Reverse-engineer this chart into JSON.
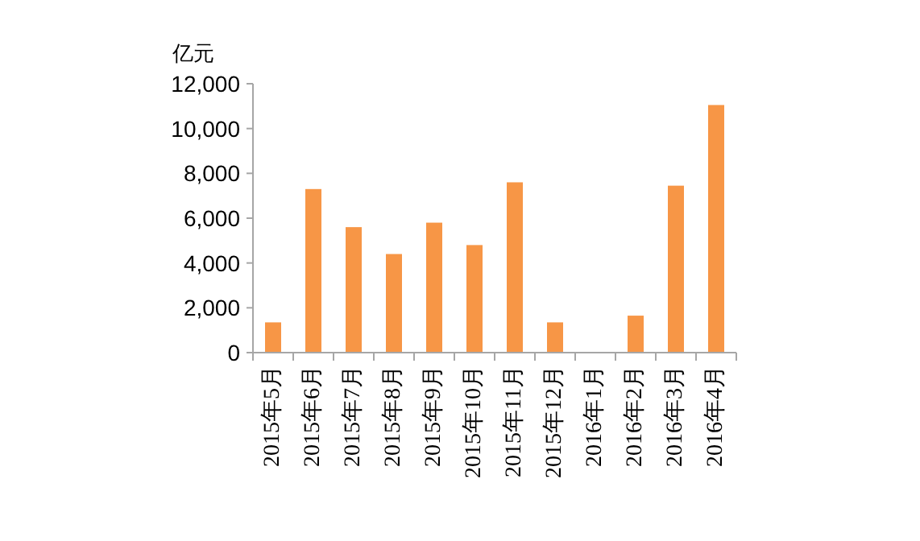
{
  "chart_data": {
    "type": "bar",
    "ylabel": "亿元",
    "categories": [
      "2015年5月",
      "2015年6月",
      "2015年7月",
      "2015年8月",
      "2015年9月",
      "2015年10月",
      "2015年11月",
      "2015年12月",
      "2016年1月",
      "2016年2月",
      "2016年3月",
      "2016年4月"
    ],
    "values": [
      1350,
      7300,
      5600,
      4400,
      5800,
      4800,
      7600,
      1350,
      0,
      1650,
      7450,
      11050
    ],
    "color": "#f79646",
    "ylim": [
      0,
      12000
    ],
    "yticks": [
      {
        "value": 0,
        "label": "0"
      },
      {
        "value": 2000,
        "label": "2,000"
      },
      {
        "value": 4000,
        "label": "4,000"
      },
      {
        "value": 6000,
        "label": "6,000"
      },
      {
        "value": 8000,
        "label": "8,000"
      },
      {
        "value": 10000,
        "label": "10,000"
      },
      {
        "value": 12000,
        "label": "12,000"
      }
    ],
    "grid": false
  }
}
